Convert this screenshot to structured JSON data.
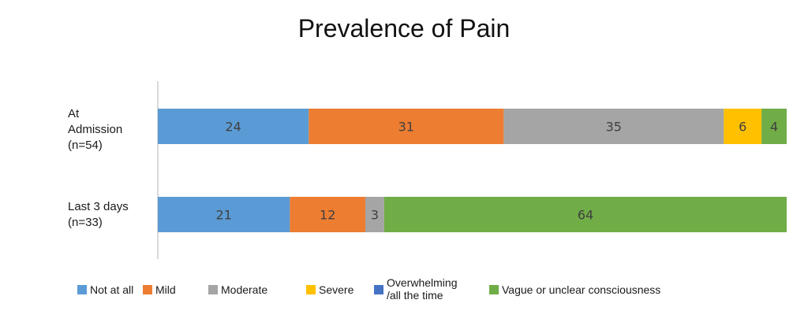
{
  "chart_data": {
    "type": "bar",
    "orientation": "horizontal",
    "stacked": true,
    "title": "Prevalence of Pain",
    "categories": [
      "At\nAdmission\n(n=54)",
      "Last 3 days\n  (n=33)"
    ],
    "xlim": [
      0,
      100
    ],
    "series": [
      {
        "name": "Not at all",
        "color": "#5b9bd5",
        "values": [
          24,
          21
        ]
      },
      {
        "name": "Mild",
        "color": "#ed7d31",
        "values": [
          31,
          12
        ]
      },
      {
        "name": "Moderate",
        "color": "#a5a5a5",
        "values": [
          35,
          3
        ]
      },
      {
        "name": "Severe",
        "color": "#ffc000",
        "values": [
          6,
          0
        ]
      },
      {
        "name": "Overwhelming\n /all the time",
        "color": "#4472c4",
        "values": [
          0,
          0
        ]
      },
      {
        "name": "Vague or unclear consciousness",
        "color": "#70ad47",
        "values": [
          4,
          64
        ]
      }
    ],
    "legend": "bottom",
    "grid": false
  }
}
